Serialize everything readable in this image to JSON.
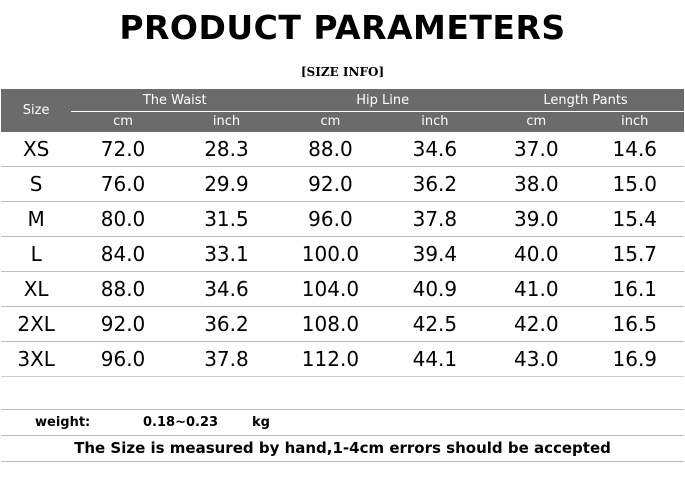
{
  "title": "PRODUCT PARAMETERS",
  "subtitle": "[SIZE INFO]",
  "table": {
    "size_header": "Size",
    "groups": [
      "The Waist",
      "Hip Line",
      "Length Pants"
    ],
    "units": [
      "cm",
      "inch",
      "cm",
      "inch",
      "cm",
      "inch"
    ],
    "rows": [
      [
        "XS",
        "72.0",
        "28.3",
        "88.0",
        "34.6",
        "37.0",
        "14.6"
      ],
      [
        "S",
        "76.0",
        "29.9",
        "92.0",
        "36.2",
        "38.0",
        "15.0"
      ],
      [
        "M",
        "80.0",
        "31.5",
        "96.0",
        "37.8",
        "39.0",
        "15.4"
      ],
      [
        "L",
        "84.0",
        "33.1",
        "100.0",
        "39.4",
        "40.0",
        "15.7"
      ],
      [
        "XL",
        "88.0",
        "34.6",
        "104.0",
        "40.9",
        "41.0",
        "16.1"
      ],
      [
        "2XL",
        "92.0",
        "36.2",
        "108.0",
        "42.5",
        "42.0",
        "16.5"
      ],
      [
        "3XL",
        "96.0",
        "37.8",
        "112.0",
        "44.1",
        "43.0",
        "16.9"
      ]
    ]
  },
  "weight": {
    "label": "weight:",
    "value": "0.18~0.23",
    "unit": "kg"
  },
  "note": "The Size is measured by hand,1-4cm errors should be accepted",
  "colors": {
    "header_bg": "#6b6b6b",
    "header_text": "#ffffff",
    "row_divider": "#bdbdbd"
  }
}
